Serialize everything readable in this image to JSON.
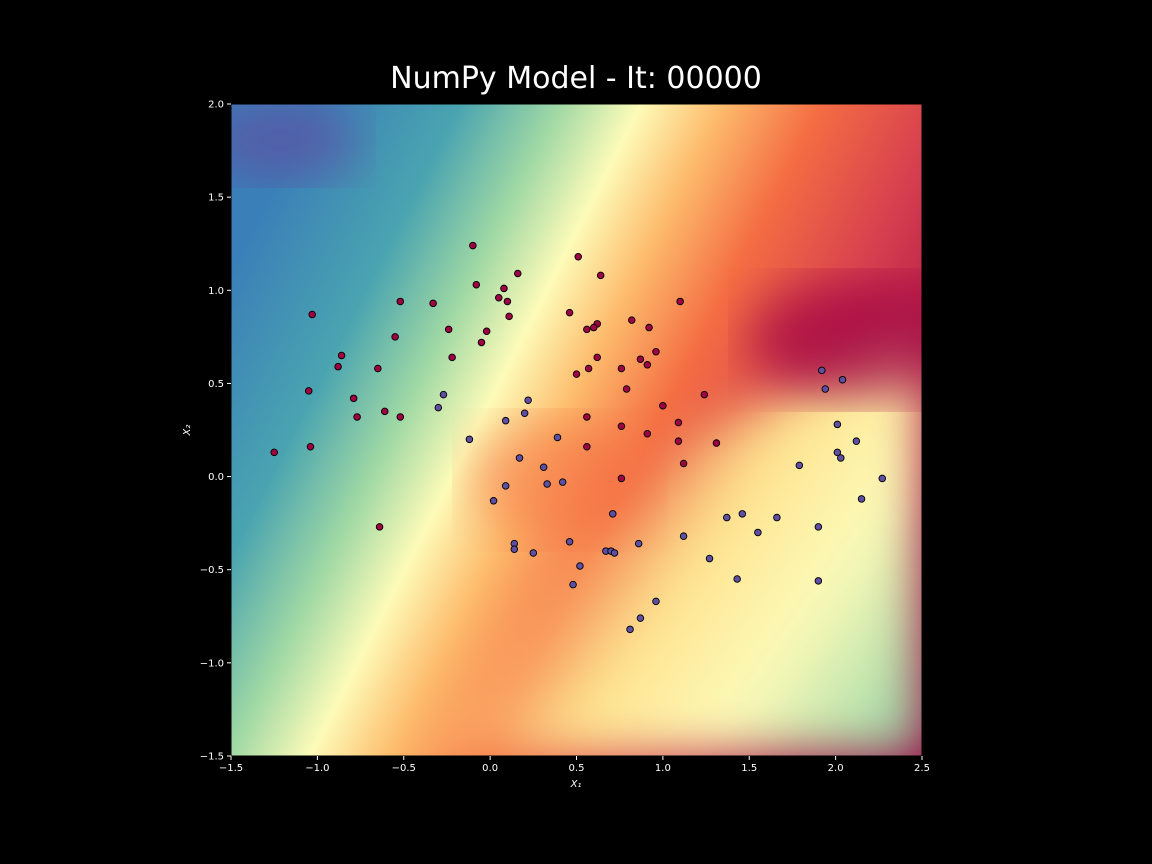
{
  "chart_data": {
    "type": "scatter",
    "title": "NumPy Model - It: 00000",
    "x_label": "X₁",
    "y_label": "X₂",
    "xlim": [
      -1.5,
      2.5
    ],
    "ylim": [
      -1.5,
      2.0
    ],
    "xticks": [
      {
        "value": -1.5,
        "label": "−1.5"
      },
      {
        "value": -1.0,
        "label": "−1.0"
      },
      {
        "value": -0.5,
        "label": "−0.5"
      },
      {
        "value": 0,
        "label": "0.0"
      },
      0.5,
      {
        "value": 1,
        "label": "1.0"
      },
      1.5,
      {
        "value": 2,
        "label": "2.0"
      },
      2.5
    ],
    "yticks": [
      {
        "value": -1.5,
        "label": "−1.5"
      },
      {
        "value": -1.0,
        "label": "−1.0"
      },
      {
        "value": -0.5,
        "label": "−0.5"
      },
      {
        "value": 0,
        "label": "0.0"
      },
      0.5,
      {
        "value": 1,
        "label": "1.0"
      },
      1.5,
      {
        "value": 2,
        "label": "2.0"
      }
    ],
    "series": [
      {
        "color": "#9e0142",
        "x": [
          -0.1,
          -1.03,
          -0.08,
          0.16,
          0.05,
          0.08,
          0.1,
          0.11,
          -0.52,
          -0.33,
          -0.24,
          -0.02,
          -0.05,
          -0.55,
          -0.22,
          -0.86,
          -0.88,
          -0.65,
          -1.05,
          -0.79,
          -0.77,
          -0.61,
          -0.52,
          -1.04,
          -1.25,
          -0.64,
          0.51,
          0.64,
          0.46,
          0.62,
          0.6,
          0.56,
          0.82,
          1.1,
          0.92,
          0.62,
          0.96,
          0.87,
          0.91,
          0.57,
          0.5,
          0.76,
          0.79,
          1.24,
          1.0,
          0.56,
          1.09,
          0.76,
          0.91,
          1.09,
          1.31,
          0.56,
          1.12,
          0.76
        ],
        "values": [
          1.24,
          0.87,
          1.03,
          1.09,
          0.96,
          1.01,
          0.94,
          0.86,
          0.94,
          0.93,
          0.79,
          0.78,
          0.72,
          0.75,
          0.64,
          0.65,
          0.59,
          0.58,
          0.46,
          0.42,
          0.32,
          0.35,
          0.32,
          0.16,
          0.13,
          -0.27,
          1.18,
          1.08,
          0.88,
          0.82,
          0.8,
          0.79,
          0.84,
          0.94,
          0.8,
          0.64,
          0.67,
          0.63,
          0.6,
          0.58,
          0.55,
          0.58,
          0.47,
          0.44,
          0.38,
          0.32,
          0.29,
          0.27,
          0.23,
          0.19,
          0.18,
          0.16,
          0.07,
          -0.01
        ]
      },
      {
        "color": "#5e4fa2",
        "x": [
          -0.27,
          -0.3,
          0.22,
          0.2,
          0.09,
          -0.12,
          0.39,
          0.17,
          0.31,
          0.09,
          0.33,
          0.42,
          0.02,
          0.71,
          0.14,
          0.14,
          0.25,
          0.46,
          0.67,
          0.7,
          0.72,
          0.86,
          0.52,
          0.48,
          0.96,
          0.87,
          0.81,
          1.12,
          1.27,
          1.43,
          1.37,
          1.46,
          1.55,
          1.66,
          1.9,
          1.9,
          1.79,
          1.92,
          2.04,
          1.94,
          2.01,
          2.12,
          2.01,
          2.03,
          2.15,
          2.27
        ],
        "values": [
          0.44,
          0.37,
          0.41,
          0.34,
          0.3,
          0.2,
          0.21,
          0.1,
          0.05,
          -0.05,
          -0.04,
          -0.03,
          -0.13,
          -0.2,
          -0.36,
          -0.39,
          -0.41,
          -0.35,
          -0.4,
          -0.4,
          -0.41,
          -0.36,
          -0.48,
          -0.58,
          -0.67,
          -0.76,
          -0.82,
          -0.32,
          -0.44,
          -0.55,
          -0.22,
          -0.2,
          -0.3,
          -0.22,
          -0.27,
          -0.56,
          0.06,
          0.57,
          0.52,
          0.47,
          0.28,
          0.19,
          0.13,
          0.1,
          -0.12,
          -0.01
        ]
      }
    ]
  }
}
